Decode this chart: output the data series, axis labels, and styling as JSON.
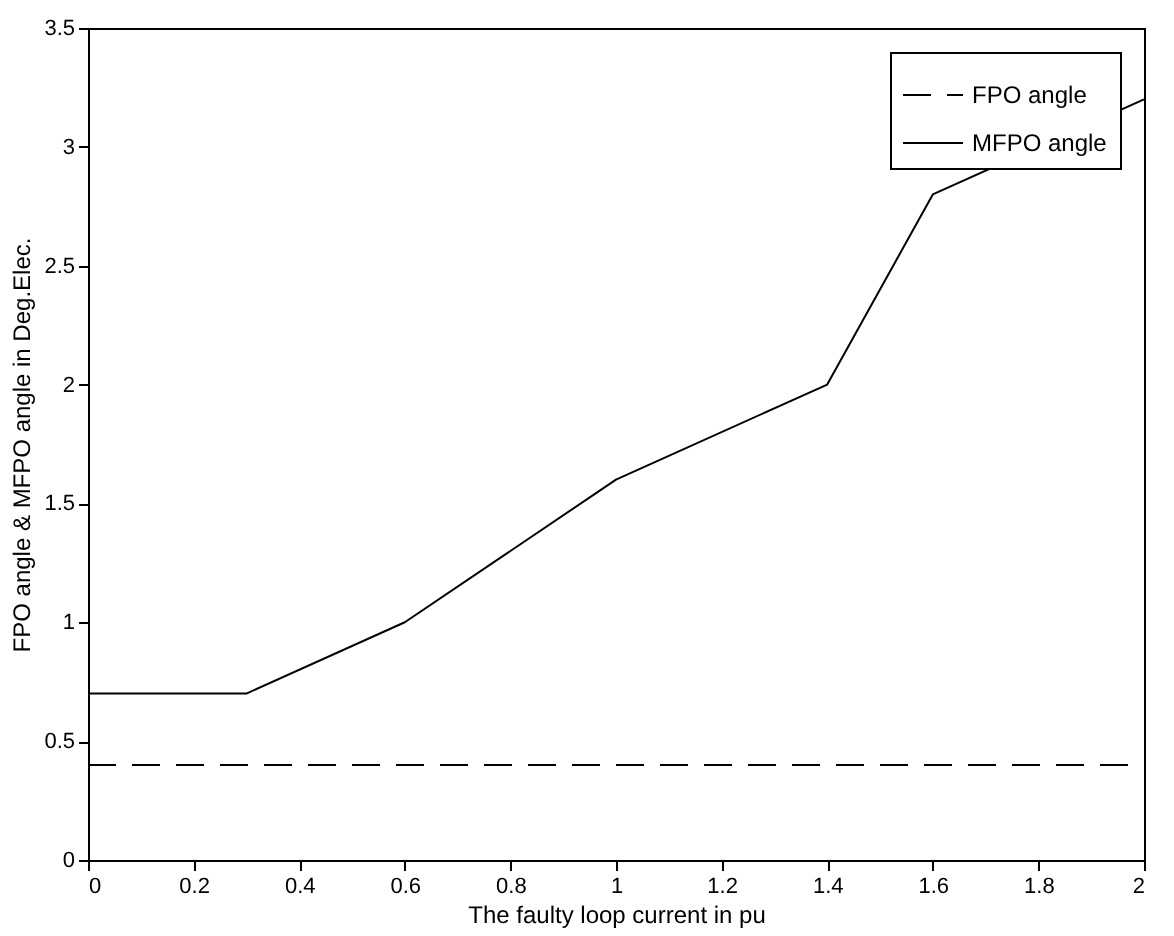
{
  "chart_data": {
    "type": "line",
    "xlabel": "The faulty loop current in pu",
    "ylabel": "FPO angle & MFPO angle in Deg.Elec.",
    "xlim": [
      0,
      2
    ],
    "xticks": [
      0,
      0.2,
      0.4,
      0.6,
      0.8,
      1,
      1.2,
      1.4,
      1.6,
      1.8,
      2
    ],
    "ylim": [
      0,
      3.5
    ],
    "yticks": [
      0,
      0.5,
      1,
      1.5,
      2,
      2.5,
      3,
      3.5
    ],
    "grid": false,
    "legend": "top right",
    "marker": "none",
    "series": [
      {
        "name": "FPO angle",
        "color": "#000000",
        "line_style": "dashed",
        "x": [
          0,
          2
        ],
        "values": [
          0.4,
          0.4
        ]
      },
      {
        "name": "MFPO angle",
        "color": "#000000",
        "line_style": "solid",
        "x": [
          0,
          0.3,
          0.6,
          1,
          1.4,
          1.6,
          2
        ],
        "values": [
          0.7,
          0.7,
          1,
          1.6,
          2,
          2.8,
          3.2
        ]
      }
    ]
  }
}
